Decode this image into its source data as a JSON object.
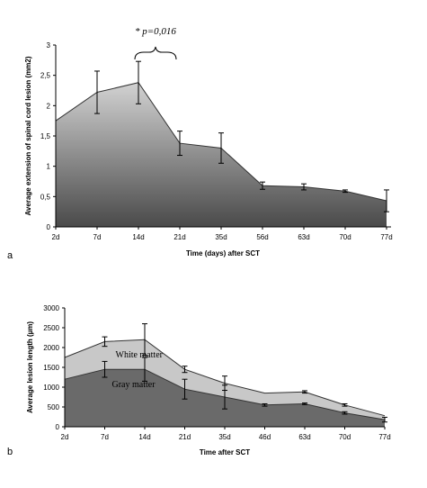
{
  "chart_data": [
    {
      "panel": "a",
      "type": "area",
      "categories": [
        "2d",
        "7d",
        "14d",
        "21d",
        "35d",
        "56d",
        "63d",
        "70d",
        "77d"
      ],
      "values": [
        1.75,
        2.22,
        2.38,
        1.38,
        1.3,
        0.68,
        0.66,
        0.59,
        0.43
      ],
      "errors": [
        0,
        0.35,
        0.35,
        0.2,
        0.25,
        0.06,
        0.05,
        0.02,
        0.18
      ],
      "ylim": [
        0,
        3
      ],
      "yticks": [
        "0",
        "0,5",
        "1",
        "1,5",
        "2",
        "2,5",
        "3"
      ],
      "xlabel": "Time (days) after SCT",
      "ylabel": "Average extension of spinal cord lesion (mm2)",
      "annotation": "* p=0,016",
      "colors": {
        "top": "#d2d2d2",
        "bottom": "#4a4a4a",
        "line": "#333333"
      }
    },
    {
      "panel": "b",
      "type": "area",
      "categories": [
        "2d",
        "7d",
        "14d",
        "21d",
        "35d",
        "46d",
        "63d",
        "70d",
        "77d"
      ],
      "series": [
        {
          "name": "White matter",
          "values": [
            1750,
            2150,
            2200,
            1450,
            1100,
            850,
            880,
            550,
            280
          ],
          "errors": [
            0,
            120,
            400,
            80,
            180,
            0,
            30,
            30,
            0
          ],
          "color": "#c8c8c8"
        },
        {
          "name": "Gray matter",
          "values": [
            1200,
            1450,
            1450,
            950,
            750,
            550,
            580,
            350,
            180
          ],
          "errors": [
            0,
            200,
            300,
            250,
            300,
            30,
            20,
            30,
            60
          ],
          "color": "#6a6a6a"
        }
      ],
      "ylim": [
        0,
        3000
      ],
      "yticks": [
        "0",
        "500",
        "1000",
        "1500",
        "2000",
        "2500",
        "3000"
      ],
      "xlabel": "Time after SCT",
      "ylabel": "Average lesion length (µm)"
    }
  ]
}
